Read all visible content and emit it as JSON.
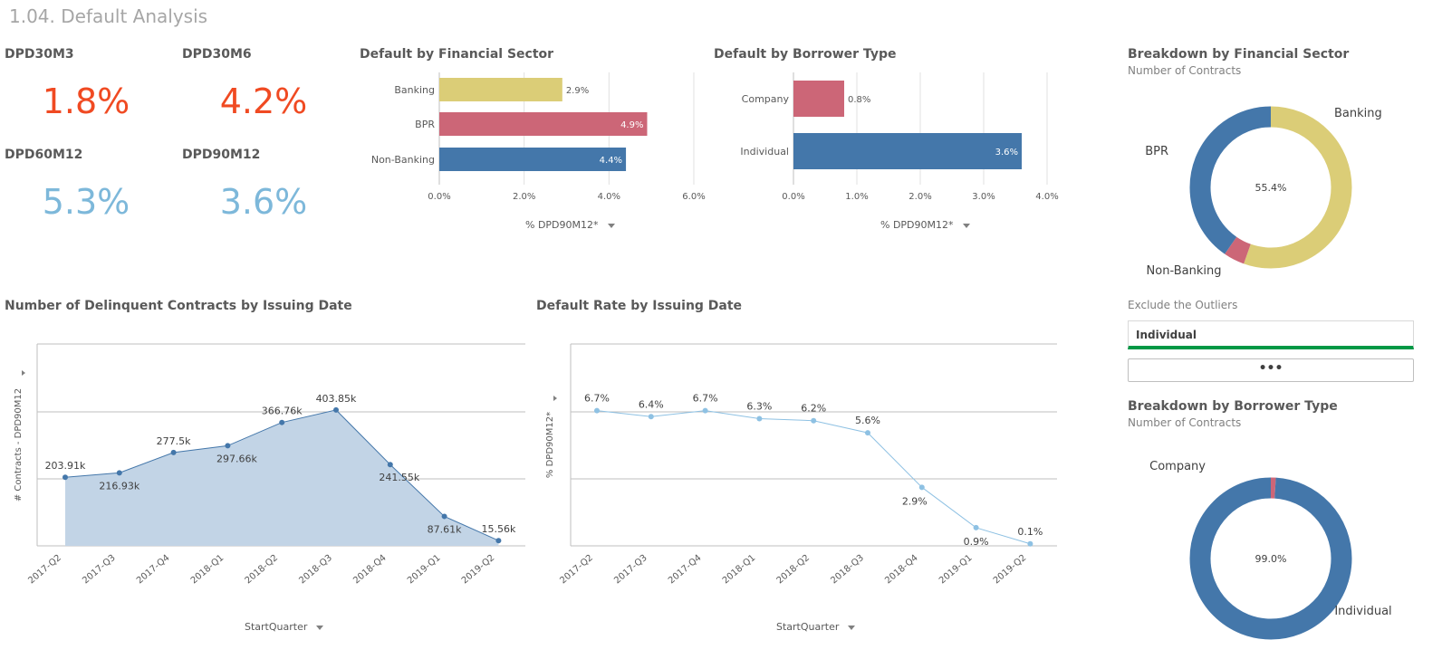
{
  "page": {
    "title": "1.04. Default Analysis"
  },
  "colors": {
    "red_kpi": "#f04a22",
    "blue_kpi": "#7db8da",
    "yellow": "#dbcd77",
    "pink": "#cc6677",
    "blue": "#4477aa",
    "area_fill": "#c2d4e6",
    "line_light": "#8ec1e3"
  },
  "kpis": [
    {
      "label": "DPD30M3",
      "value": "1.8%",
      "color": "#f04a22"
    },
    {
      "label": "DPD30M6",
      "value": "4.2%",
      "color": "#f04a22"
    },
    {
      "label": "DPD60M12",
      "value": "5.3%",
      "color": "#7db8da"
    },
    {
      "label": "DPD90M12",
      "value": "3.6%",
      "color": "#7db8da"
    }
  ],
  "filter": {
    "label": "Exclude the Outliers",
    "selected": "Individual",
    "more_label": "•••"
  },
  "chart_data": [
    {
      "id": "sector_bar",
      "type": "bar",
      "orientation": "horizontal",
      "title": "Default by Financial Sector",
      "categories": [
        "Banking",
        "BPR",
        "Non-Banking"
      ],
      "values": [
        2.9,
        4.9,
        4.4
      ],
      "value_labels": [
        "2.9%",
        "4.9%",
        "4.4%"
      ],
      "bar_colors": [
        "#dbcd77",
        "#cc6677",
        "#4477aa"
      ],
      "xlim": [
        0,
        6
      ],
      "x_ticks": [
        "0.0%",
        "2.0%",
        "4.0%",
        "6.0%"
      ],
      "xlabel": "% DPD90M12*",
      "grid": true
    },
    {
      "id": "borrower_bar",
      "type": "bar",
      "orientation": "horizontal",
      "title": "Default by Borrower Type",
      "categories": [
        "Company",
        "Individual"
      ],
      "values": [
        0.8,
        3.6
      ],
      "value_labels": [
        "0.8%",
        "3.6%"
      ],
      "bar_colors": [
        "#cc6677",
        "#4477aa"
      ],
      "xlim": [
        0,
        4
      ],
      "x_ticks": [
        "0.0%",
        "1.0%",
        "2.0%",
        "3.0%",
        "4.0%"
      ],
      "xlabel": "% DPD90M12*",
      "grid": true
    },
    {
      "id": "sector_donut",
      "type": "pie",
      "title": "Breakdown by Financial Sector",
      "subtitle": "Number of Contracts",
      "categories": [
        "Banking",
        "BPR",
        "Non-Banking"
      ],
      "values": [
        55.4,
        4.2,
        40.4
      ],
      "colors": [
        "#dbcd77",
        "#cc6677",
        "#4477aa"
      ],
      "center_label": "55.4%"
    },
    {
      "id": "borrower_donut",
      "type": "pie",
      "title": "Breakdown by Borrower Type",
      "subtitle": "Number of Contracts",
      "categories": [
        "Company",
        "Individual"
      ],
      "values": [
        1.0,
        99.0
      ],
      "colors": [
        "#cc6677",
        "#4477aa"
      ],
      "center_label": "99.0%"
    },
    {
      "id": "contracts_area",
      "type": "area",
      "title": "Number of Delinquent Contracts by Issuing Date",
      "categories": [
        "2017-Q2",
        "2017-Q3",
        "2017-Q4",
        "2018-Q1",
        "2018-Q2",
        "2018-Q3",
        "2018-Q4",
        "2019-Q1",
        "2019-Q2"
      ],
      "values": [
        203.91,
        216.93,
        277.5,
        297.66,
        366.76,
        403.85,
        241.55,
        87.61,
        15.56
      ],
      "value_labels": [
        "203.91k",
        "216.93k",
        "277.5k",
        "297.66k",
        "366.76k",
        "403.85k",
        "241.55k",
        "87.61k",
        "15.56k"
      ],
      "ylim": [
        0,
        600
      ],
      "ylabel": "# Contracts - DPD90M12",
      "xlabel": "StartQuarter",
      "grid": true
    },
    {
      "id": "rate_line",
      "type": "line",
      "title": "Default Rate by Issuing Date",
      "categories": [
        "2017-Q2",
        "2017-Q3",
        "2017-Q4",
        "2018-Q1",
        "2018-Q2",
        "2018-Q3",
        "2018-Q4",
        "2019-Q1",
        "2019-Q2"
      ],
      "values": [
        6.7,
        6.4,
        6.7,
        6.3,
        6.2,
        5.6,
        2.9,
        0.9,
        0.1
      ],
      "value_labels": [
        "6.7%",
        "6.4%",
        "6.7%",
        "6.3%",
        "6.2%",
        "5.6%",
        "2.9%",
        "0.9%",
        "0.1%"
      ],
      "ylim": [
        0,
        10
      ],
      "ylabel": "% DPD90M12*",
      "xlabel": "StartQuarter",
      "grid": true
    }
  ]
}
